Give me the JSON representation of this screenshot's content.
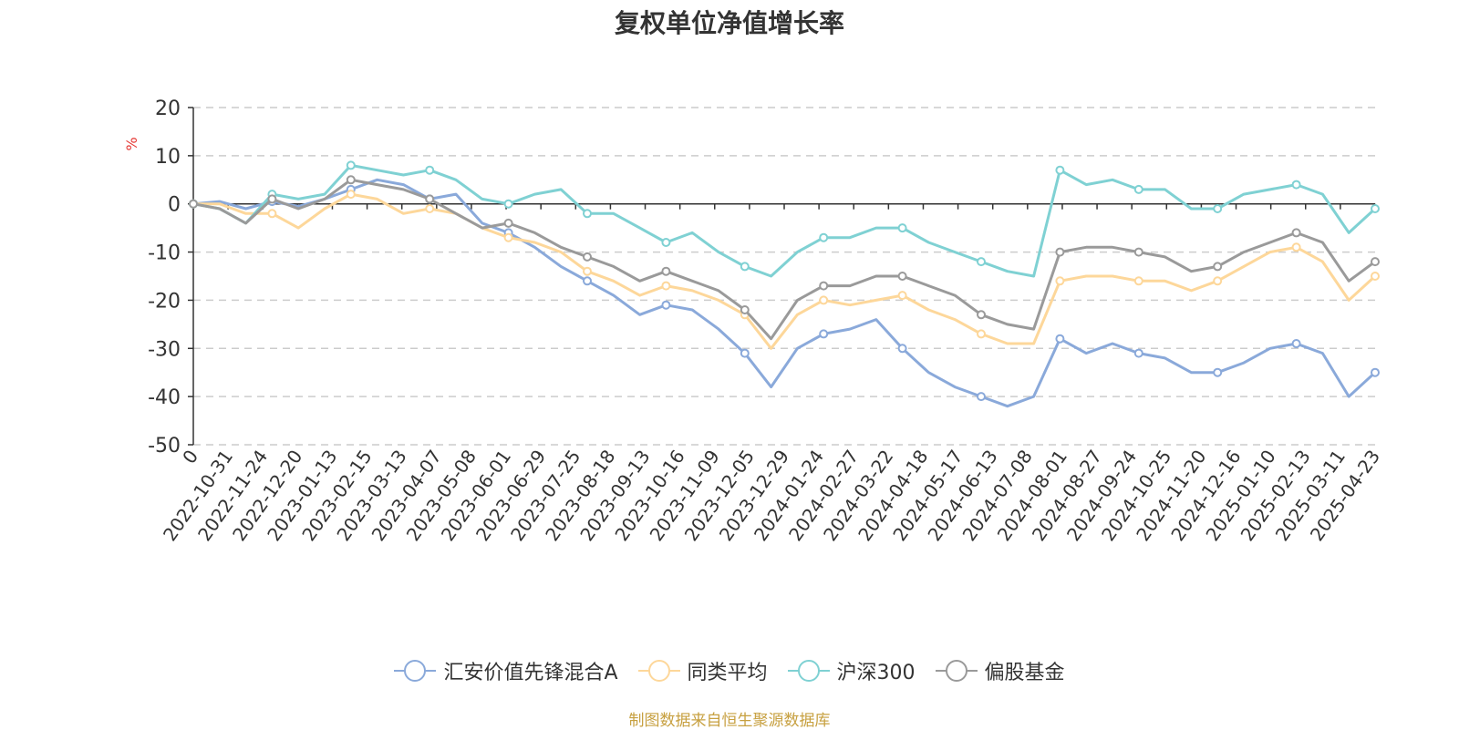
{
  "title": "复权单位净值增长率",
  "source_note": "制图数据来自恒生聚源数据库",
  "chart_data": {
    "type": "line",
    "title": "复权单位净值增长率",
    "ylabel": "%",
    "ylim": [
      -50,
      20
    ],
    "yticks": [
      20,
      10,
      0,
      -10,
      -20,
      -30,
      -40,
      -50
    ],
    "grid": true,
    "legend_position": "bottom",
    "x_tick_labels": [
      "0",
      "2022-10-31",
      "2022-11-24",
      "2022-12-20",
      "2023-01-13",
      "2023-02-15",
      "2023-03-13",
      "2023-04-07",
      "2023-05-08",
      "2023-06-01",
      "2023-06-29",
      "2023-07-25",
      "2023-08-18",
      "2023-09-13",
      "2023-10-16",
      "2023-11-09",
      "2023-12-05",
      "2023-12-29",
      "2024-01-24",
      "2024-02-27",
      "2024-03-22",
      "2024-04-18",
      "2024-05-17",
      "2024-06-13",
      "2024-07-08",
      "2024-08-01",
      "2024-08-27",
      "2024-09-24",
      "2024-10-25",
      "2024-11-20",
      "2024-12-16",
      "2025-01-10",
      "2025-02-13",
      "2025-03-11",
      "2025-04-23"
    ],
    "series": [
      {
        "name": "汇安价值先锋混合A",
        "color": "#8aa9da",
        "values": [
          0,
          0.5,
          -1,
          0.5,
          -0.5,
          1,
          3,
          5,
          4,
          1,
          2,
          -4,
          -6,
          -9,
          -13,
          -16,
          -19,
          -23,
          -21,
          -22,
          -26,
          -31,
          -38,
          -30,
          -27,
          -26,
          -24,
          -30,
          -35,
          -38,
          -40,
          -42,
          -40,
          -28,
          -31,
          -29,
          -31,
          -32,
          -35,
          -35,
          -33,
          -30,
          -29,
          -31,
          -40,
          -35
        ]
      },
      {
        "name": "同类平均",
        "color": "#fdd79a",
        "values": [
          0,
          0,
          -2,
          -2,
          -5,
          -1,
          2,
          1,
          -2,
          -1,
          -2,
          -5,
          -7,
          -8,
          -10,
          -14,
          -16,
          -19,
          -17,
          -18,
          -20,
          -23,
          -30,
          -23,
          -20,
          -21,
          -20,
          -19,
          -22,
          -24,
          -27,
          -29,
          -29,
          -16,
          -15,
          -15,
          -16,
          -16,
          -18,
          -16,
          -13,
          -10,
          -9,
          -12,
          -20,
          -15
        ]
      },
      {
        "name": "沪深300",
        "color": "#7fd1d3",
        "values": [
          0,
          -1,
          -4,
          2,
          1,
          2,
          8,
          7,
          6,
          7,
          5,
          1,
          0,
          2,
          3,
          -2,
          -2,
          -5,
          -8,
          -6,
          -10,
          -13,
          -15,
          -10,
          -7,
          -7,
          -5,
          -5,
          -8,
          -10,
          -12,
          -14,
          -15,
          7,
          4,
          5,
          3,
          3,
          -1,
          -1,
          2,
          3,
          4,
          2,
          -6,
          -1
        ]
      },
      {
        "name": "偏股基金",
        "color": "#9a9a9a",
        "values": [
          0,
          -1,
          -4,
          1,
          -1,
          1,
          5,
          4,
          3,
          1,
          -2,
          -5,
          -4,
          -6,
          -9,
          -11,
          -13,
          -16,
          -14,
          -16,
          -18,
          -22,
          -28,
          -20,
          -17,
          -17,
          -15,
          -15,
          -17,
          -19,
          -23,
          -25,
          -26,
          -10,
          -9,
          -9,
          -10,
          -11,
          -14,
          -13,
          -10,
          -8,
          -6,
          -8,
          -16,
          -12
        ]
      }
    ]
  }
}
